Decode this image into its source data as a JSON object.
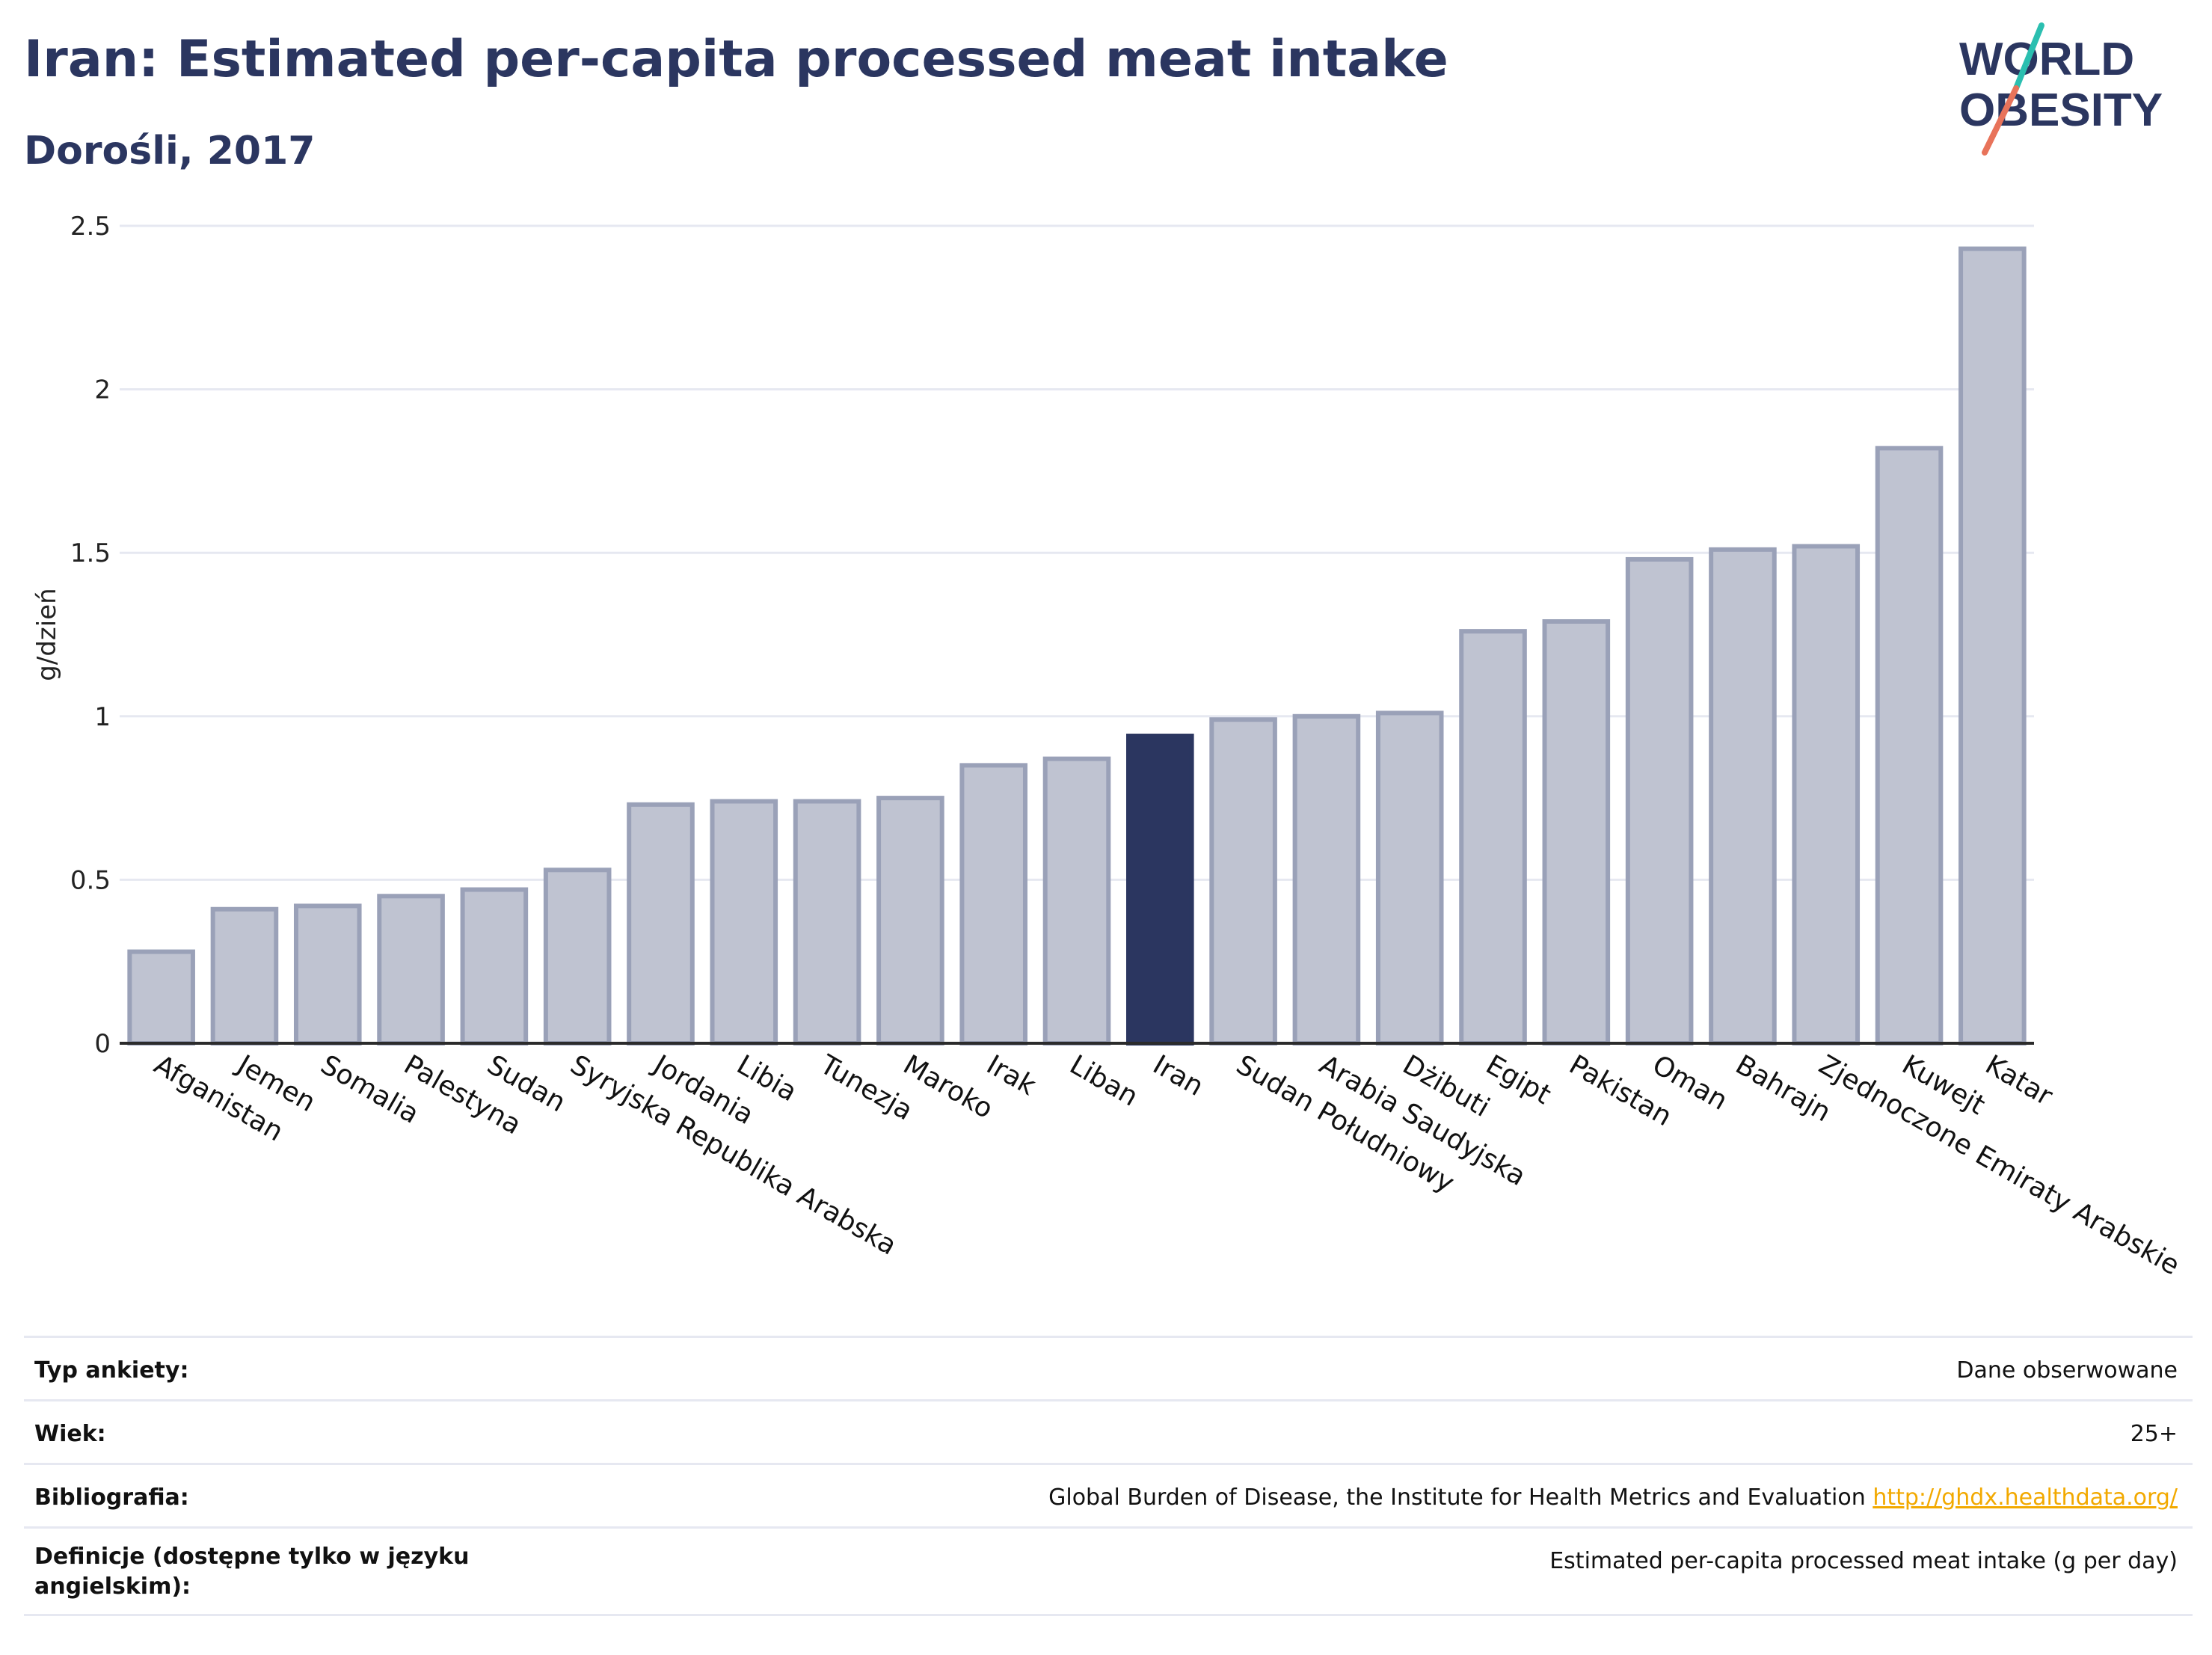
{
  "header": {
    "title": "Iran: Estimated per-capita processed meat intake",
    "subtitle": "Dorośli, 2017"
  },
  "logo": {
    "line1": "WORLD",
    "line2": "OBESITY"
  },
  "colors": {
    "highlight": "#2b3660",
    "bar_fill": "#bfc3d1",
    "bar_stroke": "#9aa1b8",
    "grid": "#e6e8f1",
    "accent_teal": "#2bbfb0",
    "accent_coral": "#e8735a",
    "link": "#f2a900"
  },
  "chart_data": {
    "type": "bar",
    "ylabel": "g/dzień",
    "ylim": [
      0,
      2.5
    ],
    "yticks": [
      0,
      0.5,
      1,
      1.5,
      2,
      2.5
    ],
    "ytick_labels": [
      "0",
      "0.5",
      "1",
      "1.5",
      "2",
      "2.5"
    ],
    "highlight": "Iran",
    "categories": [
      "Afganistan",
      "Jemen",
      "Somalia",
      "Palestyna",
      "Sudan",
      "Syryjska Republika Arabska",
      "Jordania",
      "Libia",
      "Tunezja",
      "Maroko",
      "Irak",
      "Liban",
      "Iran",
      "Sudan Południowy",
      "Arabia Saudyjska",
      "Dżibuti",
      "Egipt",
      "Pakistan",
      "Oman",
      "Bahrajn",
      "Zjednoczone Emiraty Arabskie",
      "Kuwejt",
      "Katar"
    ],
    "values": [
      0.28,
      0.41,
      0.42,
      0.45,
      0.47,
      0.53,
      0.73,
      0.74,
      0.74,
      0.75,
      0.85,
      0.87,
      0.94,
      0.99,
      1.0,
      1.01,
      1.26,
      1.29,
      1.48,
      1.51,
      1.52,
      1.82,
      2.43
    ],
    "grid": true,
    "legend": "none"
  },
  "info": {
    "rows": [
      {
        "key": "Typ ankiety:",
        "value": "Dane obserwowane"
      },
      {
        "key": "Wiek:",
        "value": "25+"
      },
      {
        "key": "Bibliografia:",
        "value": "Global Burden of Disease, the Institute for Health Metrics and Evaluation",
        "link": "http://ghdx.healthdata.org/"
      },
      {
        "key": "Definicje (dostępne tylko w języku angielskim):",
        "value": "Estimated per-capita processed meat intake (g per day)"
      }
    ]
  }
}
